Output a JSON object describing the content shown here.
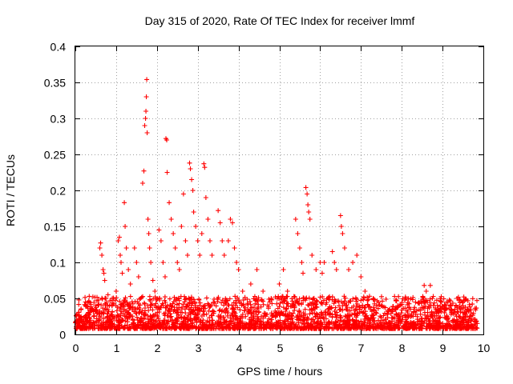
{
  "chart_data": {
    "type": "scatter",
    "title": "Day 315 of 2020, Rate Of TEC Index for receiver lmmf",
    "xlabel": "GPS time / hours",
    "ylabel": "ROTI / TECUs",
    "xlim": [
      0,
      10
    ],
    "ylim": [
      0,
      0.4
    ],
    "xticks": [
      "0",
      "1",
      "2",
      "3",
      "4",
      "5",
      "6",
      "7",
      "8",
      "9",
      "10"
    ],
    "yticks": [
      "0",
      "0.05",
      "0.1",
      "0.15",
      "0.2",
      "0.25",
      "0.3",
      "0.35",
      "0.4"
    ],
    "grid": true,
    "marker": "+",
    "color": "#ff0000",
    "series": [
      {
        "name": "ROTI",
        "points": [
          [
            0.05,
            0.015
          ],
          [
            0.15,
            0.018
          ],
          [
            0.25,
            0.02
          ],
          [
            0.35,
            0.016
          ],
          [
            0.45,
            0.025
          ],
          [
            0.55,
            0.03
          ],
          [
            0.6,
            0.12
          ],
          [
            0.62,
            0.127
          ],
          [
            0.65,
            0.11
          ],
          [
            0.68,
            0.09
          ],
          [
            0.7,
            0.085
          ],
          [
            0.72,
            0.075
          ],
          [
            0.75,
            0.05
          ],
          [
            0.8,
            0.055
          ],
          [
            0.9,
            0.04
          ],
          [
            1.0,
            0.06
          ],
          [
            1.05,
            0.13
          ],
          [
            1.08,
            0.135
          ],
          [
            1.1,
            0.11
          ],
          [
            1.12,
            0.1
          ],
          [
            1.15,
            0.085
          ],
          [
            1.2,
            0.183
          ],
          [
            1.22,
            0.15
          ],
          [
            1.25,
            0.12
          ],
          [
            1.3,
            0.09
          ],
          [
            1.35,
            0.07
          ],
          [
            1.45,
            0.12
          ],
          [
            1.5,
            0.1
          ],
          [
            1.55,
            0.08
          ],
          [
            1.6,
            0.05
          ],
          [
            1.65,
            0.21
          ],
          [
            1.68,
            0.227
          ],
          [
            1.7,
            0.29
          ],
          [
            1.72,
            0.3
          ],
          [
            1.73,
            0.31
          ],
          [
            1.74,
            0.33
          ],
          [
            1.75,
            0.354
          ],
          [
            1.76,
            0.28
          ],
          [
            1.78,
            0.16
          ],
          [
            1.8,
            0.14
          ],
          [
            1.82,
            0.12
          ],
          [
            1.85,
            0.1
          ],
          [
            1.9,
            0.075
          ],
          [
            1.95,
            0.06
          ],
          [
            2.05,
            0.145
          ],
          [
            2.1,
            0.13
          ],
          [
            2.15,
            0.1
          ],
          [
            2.2,
            0.08
          ],
          [
            2.22,
            0.272
          ],
          [
            2.24,
            0.27
          ],
          [
            2.25,
            0.225
          ],
          [
            2.3,
            0.183
          ],
          [
            2.35,
            0.16
          ],
          [
            2.4,
            0.14
          ],
          [
            2.45,
            0.12
          ],
          [
            2.5,
            0.1
          ],
          [
            2.55,
            0.09
          ],
          [
            2.6,
            0.15
          ],
          [
            2.65,
            0.195
          ],
          [
            2.7,
            0.13
          ],
          [
            2.75,
            0.11
          ],
          [
            2.8,
            0.238
          ],
          [
            2.82,
            0.23
          ],
          [
            2.85,
            0.215
          ],
          [
            2.88,
            0.2
          ],
          [
            2.9,
            0.17
          ],
          [
            2.95,
            0.15
          ],
          [
            3.0,
            0.13
          ],
          [
            3.05,
            0.11
          ],
          [
            3.1,
            0.14
          ],
          [
            3.15,
            0.237
          ],
          [
            3.17,
            0.232
          ],
          [
            3.2,
            0.19
          ],
          [
            3.25,
            0.16
          ],
          [
            3.3,
            0.13
          ],
          [
            3.35,
            0.11
          ],
          [
            3.5,
            0.172
          ],
          [
            3.55,
            0.155
          ],
          [
            3.6,
            0.13
          ],
          [
            3.65,
            0.11
          ],
          [
            3.75,
            0.13
          ],
          [
            3.8,
            0.16
          ],
          [
            3.85,
            0.155
          ],
          [
            3.9,
            0.12
          ],
          [
            3.95,
            0.1
          ],
          [
            4.0,
            0.09
          ],
          [
            4.1,
            0.06
          ],
          [
            4.3,
            0.07
          ],
          [
            4.45,
            0.09
          ],
          [
            4.6,
            0.06
          ],
          [
            4.8,
            0.05
          ],
          [
            5.0,
            0.07
          ],
          [
            5.1,
            0.09
          ],
          [
            5.2,
            0.06
          ],
          [
            5.35,
            0.04
          ],
          [
            5.4,
            0.16
          ],
          [
            5.45,
            0.14
          ],
          [
            5.5,
            0.12
          ],
          [
            5.55,
            0.1
          ],
          [
            5.58,
            0.085
          ],
          [
            5.65,
            0.204
          ],
          [
            5.68,
            0.195
          ],
          [
            5.7,
            0.18
          ],
          [
            5.72,
            0.17
          ],
          [
            5.75,
            0.16
          ],
          [
            5.8,
            0.11
          ],
          [
            5.9,
            0.09
          ],
          [
            6.0,
            0.1
          ],
          [
            6.05,
            0.085
          ],
          [
            6.1,
            0.1
          ],
          [
            6.3,
            0.115
          ],
          [
            6.35,
            0.1
          ],
          [
            6.4,
            0.09
          ],
          [
            6.5,
            0.165
          ],
          [
            6.52,
            0.15
          ],
          [
            6.55,
            0.14
          ],
          [
            6.6,
            0.12
          ],
          [
            6.7,
            0.09
          ],
          [
            6.8,
            0.1
          ],
          [
            6.9,
            0.11
          ],
          [
            7.0,
            0.08
          ],
          [
            7.1,
            0.06
          ],
          [
            7.3,
            0.05
          ],
          [
            7.5,
            0.04
          ],
          [
            7.7,
            0.035
          ],
          [
            7.9,
            0.04
          ],
          [
            8.1,
            0.05
          ],
          [
            8.3,
            0.035
          ],
          [
            8.55,
            0.068
          ],
          [
            8.6,
            0.06
          ],
          [
            8.7,
            0.068
          ],
          [
            8.75,
            0.05
          ],
          [
            8.9,
            0.03
          ],
          [
            9.1,
            0.045
          ],
          [
            9.3,
            0.035
          ],
          [
            9.5,
            0.04
          ],
          [
            9.7,
            0.03
          ],
          [
            9.85,
            0.015
          ]
        ]
      }
    ]
  }
}
